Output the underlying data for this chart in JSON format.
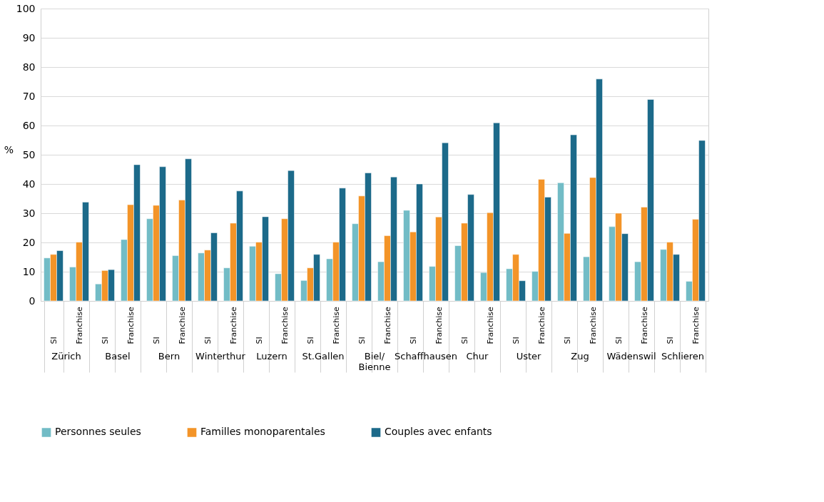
{
  "chart_data": {
    "type": "bar",
    "ylabel": "%",
    "categories": [
      "SI",
      "Franchise",
      "SI",
      "Franchise",
      "SI",
      "Franchise",
      "SI",
      "Franchise",
      "SI",
      "Franchise",
      "SI",
      "Franchise",
      "SI",
      "Franchise",
      "SI",
      "Franchise",
      "SI",
      "Franchise",
      "SI",
      "Franchise",
      "SI",
      "Franchise",
      "SI",
      "Franchise",
      "SI",
      "Franchise"
    ],
    "annotations": [
      "Zürich",
      "Basel",
      "Bern",
      "Winterthur",
      "Luzern",
      "St.Gallen",
      "Biel/\nBienne",
      "Schaffhausen",
      "Chur",
      "Uster",
      "Zug",
      "Wädenswil",
      "Schlieren"
    ],
    "series": [
      {
        "name": "Personnes seules",
        "color": "#72bcc6",
        "values": [
          14.7,
          11.6,
          5.8,
          21.0,
          28.1,
          15.5,
          16.4,
          11.3,
          18.7,
          9.3,
          7.0,
          14.4,
          26.4,
          13.4,
          31.0,
          11.8,
          18.9,
          9.7,
          11.0,
          10.1,
          40.4,
          15.1,
          25.4,
          13.4,
          17.6,
          6.7
        ]
      },
      {
        "name": "Familles monoparentales",
        "color": "#f39428",
        "values": [
          15.9,
          20.1,
          10.4,
          32.9,
          32.7,
          34.5,
          17.4,
          26.6,
          20.1,
          28.1,
          11.3,
          20.1,
          35.9,
          22.3,
          23.6,
          28.7,
          26.6,
          30.2,
          15.9,
          41.6,
          23.1,
          42.2,
          30.0,
          32.1,
          20.1,
          27.9
        ]
      },
      {
        "name": "Couples avec enfants",
        "color": "#1c6a8a",
        "values": [
          17.2,
          33.8,
          10.7,
          46.6,
          45.9,
          48.6,
          23.3,
          37.6,
          28.8,
          44.6,
          15.9,
          38.6,
          43.8,
          42.4,
          40.0,
          54.1,
          36.4,
          60.9,
          6.9,
          35.5,
          56.8,
          75.9,
          23.0,
          68.9,
          15.9,
          54.9
        ]
      }
    ],
    "ylim": [
      0,
      100
    ],
    "yticks": [
      0,
      10,
      20,
      30,
      40,
      50,
      60,
      70,
      80,
      90,
      100
    ],
    "grid": "y",
    "legend": "bottom"
  }
}
